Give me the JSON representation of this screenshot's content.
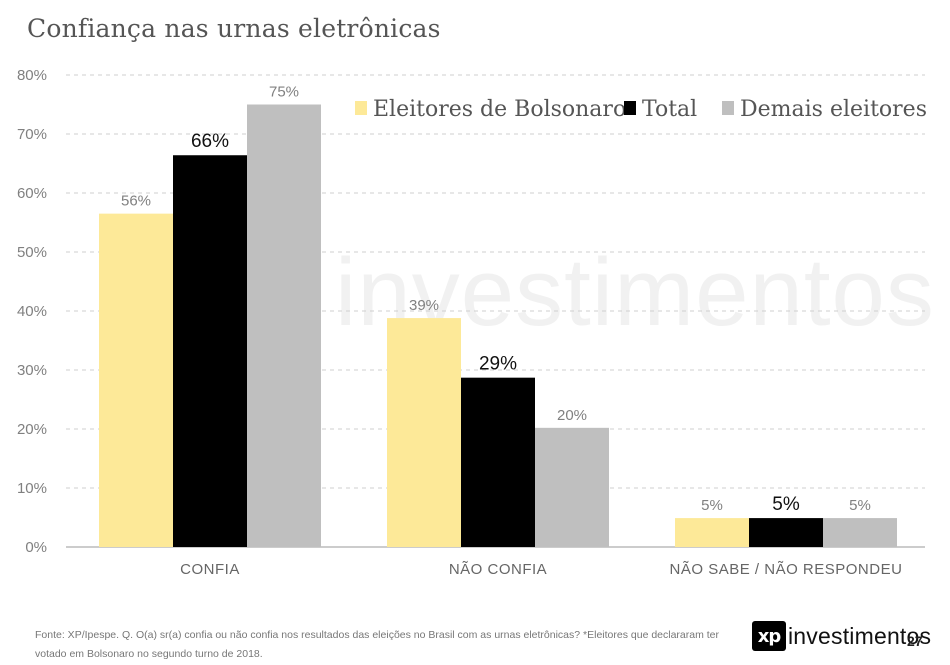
{
  "title": "Confiança nas urnas eletrônicas",
  "watermark": "investimentos",
  "chart_data": {
    "type": "bar",
    "categories": [
      "CONFIA",
      "NÃO CONFIA",
      "NÃO SABE / NÃO RESPONDEU"
    ],
    "series": [
      {
        "name": "Eleitores de Bolsonaro",
        "values": [
          56,
          39,
          5
        ],
        "labels": [
          "56%",
          "39%",
          "5%"
        ],
        "color": "#fde998"
      },
      {
        "name": "Total",
        "values": [
          66,
          29,
          5
        ],
        "labels": [
          "66%",
          "29%",
          "5%"
        ],
        "color": "#000000"
      },
      {
        "name": "Demais eleitores",
        "values": [
          75,
          20,
          5
        ],
        "labels": [
          "75%",
          "20%",
          "5%"
        ],
        "color": "#bfbfbf"
      }
    ],
    "bar_heights": [
      [
        56.5,
        38.8,
        4.9
      ],
      [
        66.4,
        28.7,
        4.9
      ],
      [
        75,
        20.2,
        4.9
      ]
    ],
    "yticks": [
      "0%",
      "10%",
      "20%",
      "30%",
      "40%",
      "50%",
      "60%",
      "70%",
      "80%"
    ],
    "ylim": [
      0,
      80
    ],
    "grid": true,
    "legend_position": "top-right",
    "xlabel": "",
    "ylabel": ""
  },
  "source": "Fonte: XP/Ipespe. Q. O(a) sr(a) confia ou não confia nos resultados das eleições no Brasil com as urnas eletrônicas? *Eleitores que declararam ter votado em Bolsonaro no segundo turno de 2018.",
  "logo": {
    "mark": "xp",
    "text": "investimentos"
  },
  "page_number": "27"
}
